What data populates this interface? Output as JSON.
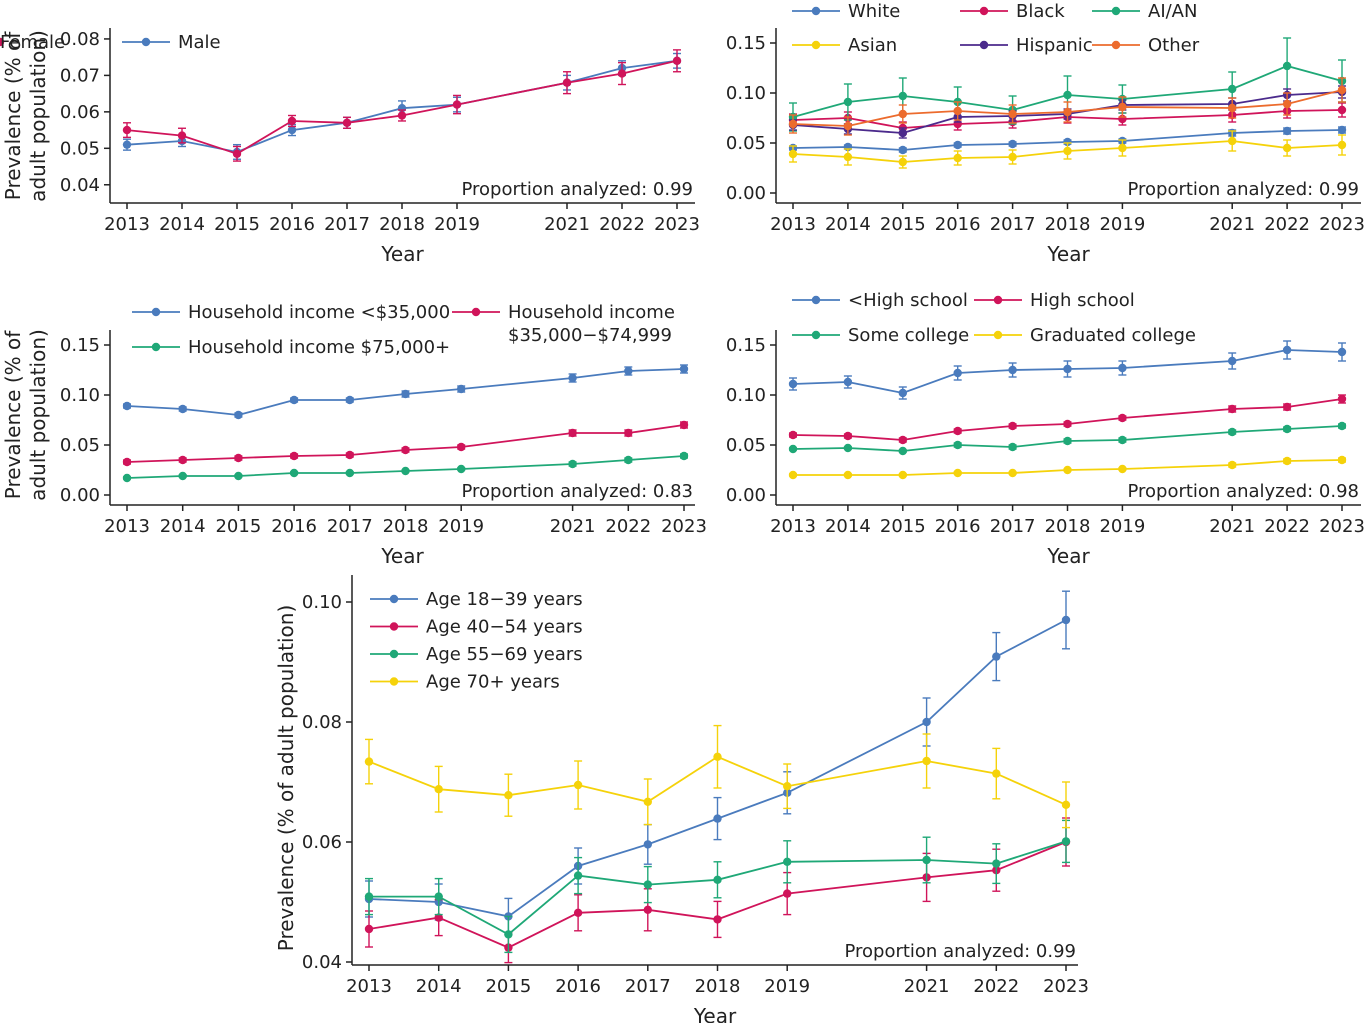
{
  "colors": {
    "blue": "#4a7bbd",
    "red": "#d0145a",
    "green": "#1fa877",
    "yellow": "#f5d20a",
    "purple": "#4b2a8c",
    "orange": "#ec6b2d",
    "axis": "#222222"
  },
  "chart_data": [
    {
      "id": "sex",
      "type": "line",
      "ylabel": "Prevalence (% of\nadult population)",
      "xlabel": "Year",
      "x": [
        2013,
        2014,
        2015,
        2016,
        2017,
        2018,
        2019,
        2021,
        2022,
        2023
      ],
      "xticks": [
        2013,
        2014,
        2015,
        2016,
        2017,
        2018,
        2019,
        2021,
        2022,
        2023
      ],
      "ylim": [
        0.035,
        0.083
      ],
      "yticks": [
        "0.04",
        "0.05",
        "0.06",
        "0.07",
        "0.08"
      ],
      "legend_position": "top-left",
      "legend": [
        [
          "Male",
          "Female"
        ]
      ],
      "annotation": "Proportion analyzed: 0.99",
      "series": [
        {
          "name": "Male",
          "color": "blue",
          "values": [
            0.051,
            0.052,
            0.049,
            0.055,
            0.057,
            0.061,
            0.062,
            0.068,
            0.072,
            0.074
          ],
          "err": [
            0.0015,
            0.0015,
            0.002,
            0.0015,
            0.0015,
            0.002,
            0.002,
            0.002,
            0.002,
            0.002
          ]
        },
        {
          "name": "Female",
          "color": "red",
          "values": [
            0.055,
            0.0535,
            0.0485,
            0.0575,
            0.057,
            0.059,
            0.062,
            0.068,
            0.0705,
            0.074
          ],
          "err": [
            0.002,
            0.002,
            0.002,
            0.0015,
            0.0015,
            0.0015,
            0.0025,
            0.003,
            0.003,
            0.003
          ]
        }
      ]
    },
    {
      "id": "race",
      "type": "line",
      "ylabel": "",
      "xlabel": "Year",
      "x": [
        2013,
        2014,
        2015,
        2016,
        2017,
        2018,
        2019,
        2021,
        2022,
        2023
      ],
      "xticks": [
        2013,
        2014,
        2015,
        2016,
        2017,
        2018,
        2019,
        2021,
        2022,
        2023
      ],
      "ylim": [
        -0.01,
        0.165
      ],
      "yticks": [
        "0.00",
        "0.05",
        "0.10",
        "0.15"
      ],
      "legend_position": "top",
      "legend": [
        [
          "White",
          "Black",
          "AI/AN"
        ],
        [
          "Asian",
          "Hispanic",
          "Other"
        ]
      ],
      "annotation": "Proportion analyzed: 0.99",
      "series": [
        {
          "name": "White",
          "color": "blue",
          "values": [
            0.045,
            0.046,
            0.043,
            0.048,
            0.049,
            0.051,
            0.052,
            0.06,
            0.062,
            0.063
          ],
          "err": [
            0.002,
            0.002,
            0.002,
            0.002,
            0.002,
            0.002,
            0.002,
            0.003,
            0.003,
            0.003
          ]
        },
        {
          "name": "Black",
          "color": "red",
          "values": [
            0.073,
            0.075,
            0.065,
            0.069,
            0.071,
            0.076,
            0.074,
            0.078,
            0.082,
            0.083
          ],
          "err": [
            0.006,
            0.006,
            0.006,
            0.006,
            0.006,
            0.006,
            0.006,
            0.007,
            0.007,
            0.007
          ]
        },
        {
          "name": "AI/AN",
          "color": "green",
          "values": [
            0.076,
            0.091,
            0.097,
            0.091,
            0.083,
            0.098,
            0.094,
            0.104,
            0.127,
            0.112
          ],
          "err": [
            0.014,
            0.018,
            0.018,
            0.015,
            0.014,
            0.019,
            0.014,
            0.017,
            0.028,
            0.021
          ]
        },
        {
          "name": "Asian",
          "color": "yellow",
          "values": [
            0.039,
            0.036,
            0.031,
            0.035,
            0.036,
            0.042,
            0.045,
            0.052,
            0.045,
            0.048
          ],
          "err": [
            0.008,
            0.008,
            0.006,
            0.007,
            0.007,
            0.008,
            0.008,
            0.01,
            0.008,
            0.01
          ]
        },
        {
          "name": "Hispanic",
          "color": "purple",
          "values": [
            0.068,
            0.064,
            0.06,
            0.076,
            0.077,
            0.079,
            0.088,
            0.089,
            0.098,
            0.101
          ],
          "err": [
            0.005,
            0.005,
            0.005,
            0.005,
            0.005,
            0.005,
            0.005,
            0.006,
            0.006,
            0.006
          ]
        },
        {
          "name": "Other",
          "color": "orange",
          "values": [
            0.069,
            0.067,
            0.079,
            0.082,
            0.079,
            0.081,
            0.086,
            0.085,
            0.089,
            0.103
          ],
          "err": [
            0.009,
            0.009,
            0.009,
            0.009,
            0.009,
            0.01,
            0.01,
            0.01,
            0.011,
            0.012
          ]
        }
      ]
    },
    {
      "id": "income",
      "type": "line",
      "ylabel": "Prevalence (% of\nadult population)",
      "xlabel": "Year",
      "x": [
        2013,
        2014,
        2015,
        2016,
        2017,
        2018,
        2019,
        2021,
        2022,
        2023
      ],
      "xticks": [
        2013,
        2014,
        2015,
        2016,
        2017,
        2018,
        2019,
        2021,
        2022,
        2023
      ],
      "ylim": [
        -0.01,
        0.165
      ],
      "yticks": [
        "0.00",
        "0.05",
        "0.10",
        "0.15"
      ],
      "legend_position": "top",
      "legend": [
        [
          "Household income <$35,000",
          "Household income\n$35,000−$74,999"
        ],
        [
          "Household income $75,000+"
        ]
      ],
      "annotation": "Proportion analyzed: 0.83",
      "series": [
        {
          "name": "Household income <$35,000",
          "color": "blue",
          "values": [
            0.089,
            0.086,
            0.08,
            0.095,
            0.095,
            0.101,
            0.106,
            0.117,
            0.124,
            0.126
          ],
          "err": [
            0.002,
            0.002,
            0.002,
            0.002,
            0.002,
            0.003,
            0.003,
            0.004,
            0.004,
            0.004
          ]
        },
        {
          "name": "Household income\n$35,000−$74,999",
          "color": "red",
          "values": [
            0.033,
            0.035,
            0.037,
            0.039,
            0.04,
            0.045,
            0.048,
            0.062,
            0.062,
            0.07
          ],
          "err": [
            0.002,
            0.002,
            0.002,
            0.002,
            0.002,
            0.002,
            0.002,
            0.003,
            0.003,
            0.003
          ]
        },
        {
          "name": "Household income $75,000+",
          "color": "green",
          "values": [
            0.017,
            0.019,
            0.019,
            0.022,
            0.022,
            0.024,
            0.026,
            0.031,
            0.035,
            0.039
          ],
          "err": [
            0.001,
            0.001,
            0.001,
            0.001,
            0.001,
            0.001,
            0.001,
            0.002,
            0.002,
            0.002
          ]
        }
      ]
    },
    {
      "id": "education",
      "type": "line",
      "ylabel": "",
      "xlabel": "Year",
      "x": [
        2013,
        2014,
        2015,
        2016,
        2017,
        2018,
        2019,
        2021,
        2022,
        2023
      ],
      "xticks": [
        2013,
        2014,
        2015,
        2016,
        2017,
        2018,
        2019,
        2021,
        2022,
        2023
      ],
      "ylim": [
        -0.01,
        0.165
      ],
      "yticks": [
        "0.00",
        "0.05",
        "0.10",
        "0.15"
      ],
      "legend_position": "top",
      "legend": [
        [
          "<High school",
          "High school"
        ],
        [
          "Some college",
          "Graduated college"
        ]
      ],
      "annotation": "Proportion analyzed: 0.98",
      "series": [
        {
          "name": "<High school",
          "color": "blue",
          "values": [
            0.111,
            0.113,
            0.102,
            0.122,
            0.125,
            0.126,
            0.127,
            0.134,
            0.145,
            0.143
          ],
          "err": [
            0.006,
            0.006,
            0.006,
            0.007,
            0.007,
            0.008,
            0.007,
            0.008,
            0.009,
            0.009
          ]
        },
        {
          "name": "High school",
          "color": "red",
          "values": [
            0.06,
            0.059,
            0.055,
            0.064,
            0.069,
            0.071,
            0.077,
            0.086,
            0.088,
            0.096
          ],
          "err": [
            0.002,
            0.002,
            0.002,
            0.002,
            0.002,
            0.002,
            0.002,
            0.003,
            0.003,
            0.004
          ]
        },
        {
          "name": "Some college",
          "color": "green",
          "values": [
            0.046,
            0.047,
            0.044,
            0.05,
            0.048,
            0.054,
            0.055,
            0.063,
            0.066,
            0.069
          ],
          "err": [
            0.001,
            0.001,
            0.001,
            0.002,
            0.002,
            0.002,
            0.002,
            0.002,
            0.002,
            0.002
          ]
        },
        {
          "name": "Graduated college",
          "color": "yellow",
          "values": [
            0.02,
            0.02,
            0.02,
            0.022,
            0.022,
            0.025,
            0.026,
            0.03,
            0.034,
            0.035
          ],
          "err": [
            0.001,
            0.001,
            0.001,
            0.001,
            0.001,
            0.001,
            0.001,
            0.002,
            0.002,
            0.002
          ]
        }
      ]
    },
    {
      "id": "age",
      "type": "line",
      "ylabel": "Prevalence (% of adult population)",
      "xlabel": "Year",
      "x": [
        2013,
        2014,
        2015,
        2016,
        2017,
        2018,
        2019,
        2021,
        2022,
        2023
      ],
      "xticks": [
        2013,
        2014,
        2015,
        2016,
        2017,
        2018,
        2019,
        2021,
        2022,
        2023
      ],
      "ylim": [
        0.0395,
        0.1045
      ],
      "yticks": [
        "0.04",
        "0.06",
        "0.08",
        "0.10"
      ],
      "legend_position": "top-left",
      "legend": [
        [
          "Age 18−39 years"
        ],
        [
          "Age 40−54 years"
        ],
        [
          "Age 55−69 years"
        ],
        [
          "Age 70+ years"
        ]
      ],
      "annotation": "Proportion analyzed: 0.99",
      "series": [
        {
          "name": "Age 18−39 years",
          "color": "blue",
          "values": [
            0.0505,
            0.05,
            0.0476,
            0.056,
            0.0596,
            0.0639,
            0.0682,
            0.08,
            0.0909,
            0.097
          ],
          "err": [
            0.003,
            0.003,
            0.003,
            0.003,
            0.0033,
            0.0035,
            0.0035,
            0.004,
            0.004,
            0.0048
          ]
        },
        {
          "name": "Age 40−54 years",
          "color": "red",
          "values": [
            0.0455,
            0.0474,
            0.0424,
            0.0482,
            0.0487,
            0.0471,
            0.0514,
            0.0541,
            0.0553,
            0.06
          ],
          "err": [
            0.003,
            0.003,
            0.0025,
            0.003,
            0.0035,
            0.003,
            0.0035,
            0.004,
            0.0035,
            0.004
          ]
        },
        {
          "name": "Age 55−69 years",
          "color": "green",
          "values": [
            0.0509,
            0.0509,
            0.0446,
            0.0544,
            0.0529,
            0.0537,
            0.0567,
            0.057,
            0.0564,
            0.0601
          ],
          "err": [
            0.003,
            0.003,
            0.003,
            0.003,
            0.003,
            0.003,
            0.0035,
            0.0038,
            0.0033,
            0.0035
          ]
        },
        {
          "name": "Age 70+ years",
          "color": "yellow",
          "values": [
            0.0734,
            0.0688,
            0.0678,
            0.0695,
            0.0667,
            0.0742,
            0.0693,
            0.0735,
            0.0714,
            0.0662
          ],
          "err": [
            0.0037,
            0.0038,
            0.0035,
            0.004,
            0.0038,
            0.0052,
            0.0037,
            0.0045,
            0.0042,
            0.0038
          ]
        }
      ]
    }
  ]
}
